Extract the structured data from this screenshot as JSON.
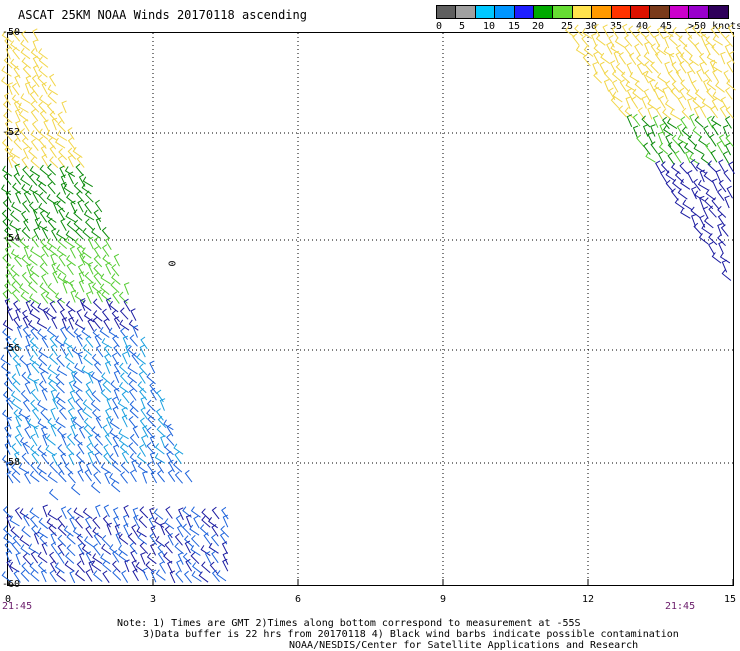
{
  "title": "ASCAT 25KM NOAA Winds 20170118 ascending",
  "legend": {
    "colors": [
      "#5f5f5f",
      "#a0a0a0",
      "#00c8ff",
      "#0096ff",
      "#1e1eff",
      "#00aa00",
      "#66dd33",
      "#ffe34d",
      "#ff9900",
      "#ff3300",
      "#dd1100",
      "#7a3a1a",
      "#cc00cc",
      "#9900cc",
      "#2e005a"
    ],
    "labels": [
      "0",
      "5",
      "10",
      "15",
      "20",
      "25",
      "30",
      "35",
      "40",
      "45",
      ">50 knots"
    ]
  },
  "axes": {
    "lat_labels": [
      "-50",
      "-52",
      "-54",
      "-56",
      "-58",
      "-60"
    ],
    "lon_labels": [
      "0",
      "3",
      "6",
      "9",
      "12",
      "15"
    ],
    "time_left": "21:45",
    "time_right": "21:45"
  },
  "contour_label": "0",
  "notes": {
    "line1": "Note: 1) Times are GMT 2)Times along bottom correspond to measurement at -55S",
    "line2": "3)Data buffer is 22 hrs from 20170118 4) Black wind barbs indicate possible contamination",
    "line3": "NOAA/NESDIS/Center for Satellite Applications and Research"
  },
  "wind_colors": {
    "yellow": "#f2d64b",
    "dark_green": "#0a8a0a",
    "light_green": "#55cc33",
    "dark_blue": "#1a1aa0",
    "blue": "#1e64dc",
    "cyan": "#1aa0e0"
  }
}
